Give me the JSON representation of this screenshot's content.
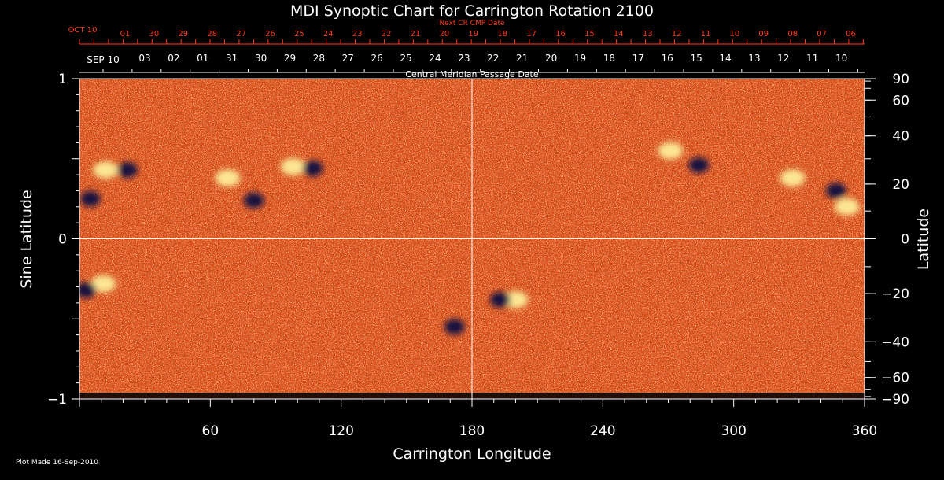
{
  "chart_data": {
    "type": "heatmap",
    "title": "MDI Synoptic Chart for Carrington Rotation 2100",
    "xlabel": "Carrington Longitude",
    "ylabel_left": "Sine Latitude",
    "ylabel_right": "Latitude",
    "xlim": [
      0,
      360
    ],
    "ylim_sine": [
      -1,
      1
    ],
    "x_ticks": [
      60,
      120,
      180,
      240,
      300,
      360
    ],
    "y_left_ticks": [
      {
        "value": 1,
        "label": "1"
      },
      {
        "value": 0,
        "label": "0"
      },
      {
        "value": -1,
        "label": "−1"
      }
    ],
    "y_right_ticks_deg": [
      90,
      60,
      40,
      20,
      0,
      -20,
      -40,
      -60,
      -90
    ],
    "y_right_tick_labels": [
      "90",
      "60",
      "40",
      "20",
      "0",
      "−20",
      "−40",
      "−60",
      "−90"
    ],
    "top_axis": {
      "label": "Central Meridian Passage Date",
      "start_label": "SEP 10",
      "dates": [
        "03",
        "02",
        "01",
        "31",
        "30",
        "29",
        "28",
        "27",
        "26",
        "25",
        "24",
        "23",
        "22",
        "21",
        "20",
        "19",
        "18",
        "17",
        "16",
        "15",
        "14",
        "13",
        "12",
        "11",
        "10"
      ]
    },
    "next_cr_axis": {
      "label": "Next CR CMP Date",
      "start_label": "OCT 10",
      "dates": [
        "01",
        "30",
        "29",
        "28",
        "27",
        "26",
        "25",
        "24",
        "23",
        "22",
        "21",
        "20",
        "19",
        "18",
        "17",
        "16",
        "15",
        "14",
        "13",
        "12",
        "11",
        "10",
        "09",
        "08",
        "07",
        "06"
      ]
    },
    "active_regions": [
      {
        "lon": 12,
        "sinlat": 0.43,
        "polarity": "positive"
      },
      {
        "lon": 22,
        "sinlat": 0.43,
        "polarity": "negative"
      },
      {
        "lon": 5,
        "sinlat": 0.25,
        "polarity": "negative"
      },
      {
        "lon": 68,
        "sinlat": 0.38,
        "polarity": "positive"
      },
      {
        "lon": 80,
        "sinlat": 0.24,
        "polarity": "negative"
      },
      {
        "lon": 98,
        "sinlat": 0.45,
        "polarity": "positive"
      },
      {
        "lon": 107,
        "sinlat": 0.44,
        "polarity": "negative"
      },
      {
        "lon": 11,
        "sinlat": -0.28,
        "polarity": "positive"
      },
      {
        "lon": 3,
        "sinlat": -0.32,
        "polarity": "negative"
      },
      {
        "lon": 172,
        "sinlat": -0.55,
        "polarity": "negative"
      },
      {
        "lon": 200,
        "sinlat": -0.38,
        "polarity": "positive"
      },
      {
        "lon": 193,
        "sinlat": -0.38,
        "polarity": "negative"
      },
      {
        "lon": 271,
        "sinlat": 0.55,
        "polarity": "positive"
      },
      {
        "lon": 284,
        "sinlat": 0.46,
        "polarity": "negative"
      },
      {
        "lon": 327,
        "sinlat": 0.38,
        "polarity": "positive"
      },
      {
        "lon": 347,
        "sinlat": 0.3,
        "polarity": "negative"
      },
      {
        "lon": 352,
        "sinlat": 0.2,
        "polarity": "positive"
      }
    ],
    "guide_lines": {
      "longitude": 180,
      "sinlat": 0
    },
    "colors": {
      "background": "#000000",
      "field_base": "#e04a10",
      "field_speckle": "#f08838",
      "positive": "#fff4a0",
      "negative": "#101040",
      "guide": "#ffffff",
      "top_axis": "#ff3a1a",
      "text": "#ffffff"
    }
  },
  "footer": {
    "plot_made": "Plot Made 16-Sep-2010"
  }
}
